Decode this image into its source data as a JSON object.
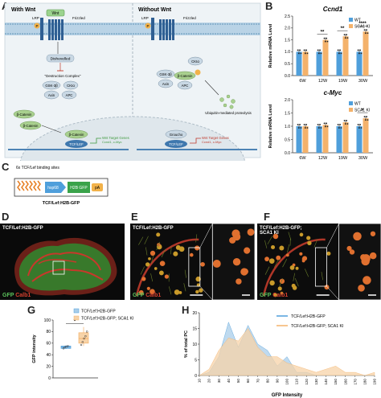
{
  "panel_letters": [
    "A",
    "B",
    "C",
    "D",
    "E",
    "F",
    "G",
    "H"
  ],
  "panelA": {
    "with_wnt": "With Wnt",
    "without_wnt": "Without Wnt",
    "wnt": "Wnt",
    "frizzled_left": "Frizzled",
    "frizzled_right": "Frizzled",
    "lrp_left": "LRP",
    "lrp_right": "LRP",
    "p_left": "P",
    "p_right": "P",
    "dishevelled": "Dishevelled",
    "destruction_complex": "\"Destruction Complex\"",
    "gsk_left": "GSK-3β",
    "ck1_left": "CKIα",
    "axin_left": "Axin",
    "apc_left": "APC",
    "ck1_right_top": "CKIα",
    "gsk_right": "GSK-3β",
    "bcat_right": "β-Catenin",
    "axin_right": "Axin",
    "apc_right": "APC",
    "ubiquitin": "Ubiquitin-mediated proteolysis",
    "bcat_cyto1": "β-Catenin",
    "bcat_cyto2": "β-Catenin",
    "bcat_nuc": "β-Catenin",
    "tcf_left": "TCF/LEF",
    "wnt_target_left": "Wnt Target Genes",
    "wnt_target_left_sub": "Ccnd1, c-Myc",
    "groucho": "Groucho",
    "tcf_right": "TCF/LEF",
    "wnt_target_right": "Wnt Target Genes",
    "wnt_target_right_sub": "Ccnd1, c-Myc"
  },
  "panelC": {
    "binding_sites": "6x TCF/Lef binding sites",
    "hsp68": "hsp68",
    "h2b_gfp": "H2B GFP",
    "pa": "pA",
    "construct": "TCF/Lef:H2B-GFP"
  },
  "panelD": {
    "title": "TCF/Lef:H2B-GFP",
    "gfp": "GFP",
    "calb": "Calb1"
  },
  "panelE": {
    "title": "TCF/Lef:H2B-GFP",
    "gfp": "GFP",
    "calb": "Calb1"
  },
  "panelF": {
    "title": "TCF/Lef:H2B-GFP; SCA1 KI",
    "gfp": "GFP",
    "calb": "Calb1"
  },
  "colors": {
    "wt": "#4f9fdb",
    "ki": "#f4b26b",
    "wt_light": "#a9cde9",
    "ki_light": "#f7d3a8",
    "green": "#5cc35c",
    "red": "#d8412f"
  },
  "chart_data": [
    {
      "id": "ccnd1",
      "type": "bar",
      "title": "Ccnd1",
      "ylabel": "Relative mRNA Level",
      "categories": [
        "6W",
        "12W",
        "19W",
        "30W"
      ],
      "ylim": [
        0,
        2.5
      ],
      "yticks": [
        "0.0",
        "0.5",
        "1.0",
        "1.5",
        "2.0",
        "2.5"
      ],
      "series": [
        {
          "name": "WT",
          "values": [
            1.0,
            1.0,
            1.0,
            1.0
          ]
        },
        {
          "name": "SCA1 KI",
          "values": [
            1.0,
            1.5,
            1.65,
            1.85
          ]
        }
      ],
      "significance": [
        "",
        "**",
        "**",
        "****"
      ],
      "legend": [
        "WT",
        "SCA1 KI"
      ]
    },
    {
      "id": "cmyc",
      "type": "bar",
      "title": "c-Myc",
      "ylabel": "Relative mRNA Level",
      "categories": [
        "6W",
        "12W",
        "19W",
        "30W"
      ],
      "ylim": [
        0,
        2.0
      ],
      "yticks": [
        "0.0",
        "0.5",
        "1.0",
        "1.5",
        "2.0"
      ],
      "series": [
        {
          "name": "WT",
          "values": [
            1.0,
            1.0,
            1.0,
            1.0
          ]
        },
        {
          "name": "SCA1 KI",
          "values": [
            1.0,
            1.05,
            1.15,
            1.3
          ]
        }
      ],
      "significance": [
        "",
        "",
        "",
        "*"
      ],
      "legend": [
        "WT",
        "SCA1 KI"
      ]
    },
    {
      "id": "gfp_box",
      "type": "box",
      "ylabel": "GFP intensity",
      "ylim": [
        0,
        100
      ],
      "yticks": [
        "0",
        "20",
        "40",
        "60",
        "80",
        "100"
      ],
      "series": [
        {
          "name": "TCF/Lef:H2B-GFP",
          "median": 53,
          "q1": 51,
          "q3": 55,
          "min": 50,
          "max": 56,
          "points": [
            51,
            53,
            54,
            55
          ]
        },
        {
          "name": "TCF/Lef:H2B-GFP; SCA1 KI",
          "median": 68,
          "q1": 60,
          "q3": 78,
          "min": 55,
          "max": 88,
          "points": [
            57,
            62,
            68,
            72,
            80
          ]
        }
      ],
      "significance": "*",
      "legend": [
        "TCF/Lef:H2B-GFP",
        "TCF/Lef:H2B-GFP; SCA1 KI"
      ]
    },
    {
      "id": "gfp_hist",
      "type": "area",
      "xlabel": "GFP Intensity",
      "ylabel": "% of total PC",
      "ylim": [
        0,
        20
      ],
      "yticks": [
        "0",
        "5",
        "10",
        "15",
        "20"
      ],
      "x": [
        10,
        20,
        30,
        40,
        50,
        60,
        70,
        80,
        90,
        100,
        110,
        120,
        130,
        140,
        150,
        160,
        170,
        180,
        190
      ],
      "series": [
        {
          "name": "TCF/Lef:H2B-GFP",
          "values": [
            0,
            1,
            6,
            17,
            9,
            16,
            10,
            8,
            3,
            6,
            1,
            1,
            0,
            0,
            0,
            0,
            0,
            0,
            0
          ]
        },
        {
          "name": "TCF/Lef:H2B-GFP; SCA1 KI",
          "values": [
            0,
            2,
            8,
            12,
            11,
            15,
            9,
            6,
            6,
            4,
            3,
            2,
            1,
            2,
            3,
            1,
            1,
            0,
            1
          ]
        }
      ],
      "legend": [
        "TCF/Lef:H2B-GFP",
        "TCF/Lef:H2B-GFP; SCA1 KI"
      ]
    }
  ]
}
